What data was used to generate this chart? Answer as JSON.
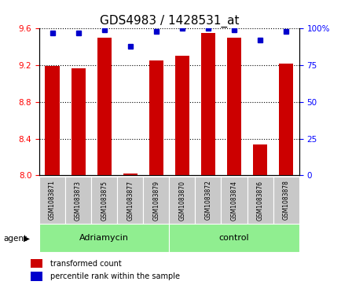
{
  "title": "GDS4983 / 1428531_at",
  "samples": [
    "GSM1083871",
    "GSM1083873",
    "GSM1083875",
    "GSM1083877",
    "GSM1083879",
    "GSM1083870",
    "GSM1083872",
    "GSM1083874",
    "GSM1083876",
    "GSM1083878"
  ],
  "bar_values": [
    9.19,
    9.17,
    9.5,
    8.02,
    9.25,
    9.3,
    9.55,
    9.5,
    8.34,
    9.22
  ],
  "percentile_values": [
    97,
    97,
    99,
    88,
    98,
    100,
    100,
    99,
    92,
    98
  ],
  "ylim_left": [
    8.0,
    9.6
  ],
  "ylim_right": [
    0,
    100
  ],
  "yticks_left": [
    8.0,
    8.4,
    8.8,
    9.2,
    9.6
  ],
  "yticks_right": [
    0,
    25,
    50,
    75,
    100
  ],
  "bar_color": "#CC0000",
  "dot_color": "#0000CC",
  "adriamycin_color": "#90EE90",
  "control_color": "#90EE90",
  "label_bg_color": "#C8C8C8",
  "group_label_adriamycin": "Adriamycin",
  "group_label_control": "control",
  "agent_label": "agent",
  "legend_bar_label": "transformed count",
  "legend_dot_label": "percentile rank within the sample",
  "title_fontsize": 11,
  "tick_fontsize": 7.5,
  "bar_width": 0.55
}
